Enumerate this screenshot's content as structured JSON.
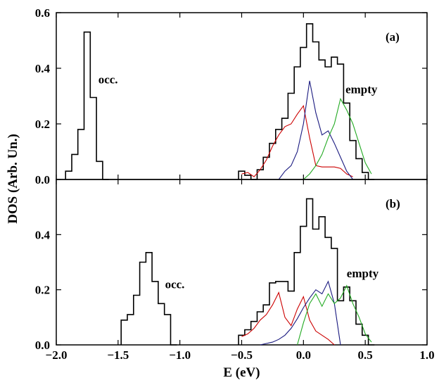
{
  "chart_data": {
    "type": "line",
    "xlabel": "E (eV)",
    "ylabel": "DOS (Arb. Un.)",
    "xlim": [
      -2.0,
      1.0
    ],
    "ylim": [
      0,
      0.6
    ],
    "x_ticks": [
      "−2.0",
      "−1.5",
      "−1.0",
      "−0.5",
      "0.0",
      "0.5",
      "1.0"
    ],
    "x_tick_values": [
      -2.0,
      -1.5,
      -1.0,
      -0.5,
      0.0,
      0.5,
      1.0
    ],
    "y_ticks": [
      "0.0",
      "0.2",
      "0.4",
      "0.6"
    ],
    "y_tick_values": [
      0.0,
      0.2,
      0.4,
      0.6
    ],
    "top_y_ticks": [
      "0.0",
      "0.2",
      "0.4",
      "0.6"
    ],
    "bottom_y_ticks": [
      "0.0",
      "0.2",
      "0.4"
    ],
    "series_colors": [
      "#000000",
      "#cc0000",
      "#1a1a80",
      "#22aa22"
    ],
    "panels": [
      {
        "label": "(a)",
        "annotations": [
          {
            "text": "occ.",
            "x": -1.66,
            "y": 0.345
          },
          {
            "text": "empty",
            "x": 0.34,
            "y": 0.31
          }
        ],
        "histogram": {
          "edges": [
            -1.925,
            -1.875,
            -1.825,
            -1.775,
            -1.725,
            -1.675,
            -1.625,
            -1.575
          ],
          "values": [
            0.03,
            0.09,
            0.18,
            0.53,
            0.295,
            0.065,
            0.0
          ]
        },
        "histogram2": {
          "edges": [
            -0.525,
            -0.475,
            -0.425,
            -0.375,
            -0.325,
            -0.275,
            -0.225,
            -0.175,
            -0.125,
            -0.075,
            -0.025,
            0.025,
            0.075,
            0.125,
            0.175,
            0.225,
            0.275,
            0.325,
            0.375,
            0.425,
            0.475,
            0.525,
            0.575
          ],
          "values": [
            0.03,
            0.015,
            0.0,
            0.035,
            0.08,
            0.13,
            0.18,
            0.22,
            0.31,
            0.405,
            0.475,
            0.56,
            0.495,
            0.43,
            0.405,
            0.44,
            0.415,
            0.275,
            0.14,
            0.075,
            0.025,
            0.0
          ]
        },
        "lines": [
          {
            "x": [
              -0.5,
              -0.45,
              -0.4,
              -0.35,
              -0.3,
              -0.25,
              -0.2,
              -0.15,
              -0.1,
              -0.05,
              0.0,
              0.05,
              0.1,
              0.15,
              0.2,
              0.25,
              0.3,
              0.35,
              0.4
            ],
            "y": [
              0.02,
              0.025,
              0.01,
              0.035,
              0.07,
              0.12,
              0.16,
              0.19,
              0.2,
              0.235,
              0.265,
              0.15,
              0.05,
              0.045,
              0.045,
              0.045,
              0.04,
              0.02,
              0.01
            ]
          },
          {
            "x": [
              -0.2,
              -0.15,
              -0.1,
              -0.05,
              0.0,
              0.05,
              0.1,
              0.15,
              0.2,
              0.25,
              0.3,
              0.35,
              0.4
            ],
            "y": [
              0.0,
              0.03,
              0.05,
              0.1,
              0.2,
              0.355,
              0.24,
              0.16,
              0.175,
              0.13,
              0.08,
              0.03,
              0.0
            ]
          },
          {
            "x": [
              0.0,
              0.05,
              0.1,
              0.15,
              0.2,
              0.25,
              0.3,
              0.35,
              0.4,
              0.45,
              0.5,
              0.55
            ],
            "y": [
              0.0,
              0.02,
              0.05,
              0.09,
              0.15,
              0.2,
              0.29,
              0.25,
              0.2,
              0.13,
              0.06,
              0.02
            ]
          }
        ]
      },
      {
        "label": "(b)",
        "annotations": [
          {
            "text": "occ.",
            "x": -1.12,
            "y": 0.205
          },
          {
            "text": "empty",
            "x": 0.35,
            "y": 0.245
          }
        ],
        "histogram": {
          "edges": [
            -1.475,
            -1.425,
            -1.375,
            -1.325,
            -1.275,
            -1.225,
            -1.175,
            -1.125,
            -1.075,
            -1.025
          ],
          "values": [
            0.09,
            0.11,
            0.18,
            0.3,
            0.335,
            0.23,
            0.15,
            0.11,
            0.0
          ]
        },
        "histogram2": {
          "edges": [
            -0.525,
            -0.475,
            -0.425,
            -0.375,
            -0.325,
            -0.275,
            -0.225,
            -0.175,
            -0.125,
            -0.075,
            -0.025,
            0.025,
            0.075,
            0.125,
            0.175,
            0.225,
            0.275,
            0.325,
            0.375,
            0.425,
            0.475,
            0.525,
            0.575
          ],
          "values": [
            0.035,
            0.055,
            0.085,
            0.12,
            0.145,
            0.225,
            0.23,
            0.23,
            0.195,
            0.335,
            0.43,
            0.53,
            0.42,
            0.465,
            0.39,
            0.35,
            0.16,
            0.21,
            0.16,
            0.075,
            0.035,
            0.0
          ]
        },
        "lines": [
          {
            "x": [
              -0.5,
              -0.45,
              -0.4,
              -0.35,
              -0.3,
              -0.25,
              -0.2,
              -0.15,
              -0.1,
              -0.05,
              0.0,
              0.05,
              0.1,
              0.15,
              0.2,
              0.25
            ],
            "y": [
              0.03,
              0.04,
              0.06,
              0.09,
              0.11,
              0.145,
              0.19,
              0.1,
              0.07,
              0.13,
              0.175,
              0.09,
              0.05,
              0.035,
              0.02,
              0.0
            ]
          },
          {
            "x": [
              -0.35,
              -0.3,
              -0.25,
              -0.2,
              -0.15,
              -0.1,
              -0.05,
              0.0,
              0.05,
              0.1,
              0.15,
              0.2,
              0.25,
              0.3
            ],
            "y": [
              0.0,
              0.005,
              0.01,
              0.02,
              0.035,
              0.06,
              0.095,
              0.135,
              0.17,
              0.2,
              0.185,
              0.23,
              0.15,
              0.0
            ]
          },
          {
            "x": [
              -0.05,
              0.0,
              0.05,
              0.1,
              0.15,
              0.2,
              0.25,
              0.3,
              0.35,
              0.4,
              0.45,
              0.5,
              0.55
            ],
            "y": [
              0.0,
              0.08,
              0.15,
              0.185,
              0.14,
              0.185,
              0.15,
              0.17,
              0.215,
              0.15,
              0.1,
              0.04,
              0.01
            ]
          }
        ]
      }
    ]
  }
}
